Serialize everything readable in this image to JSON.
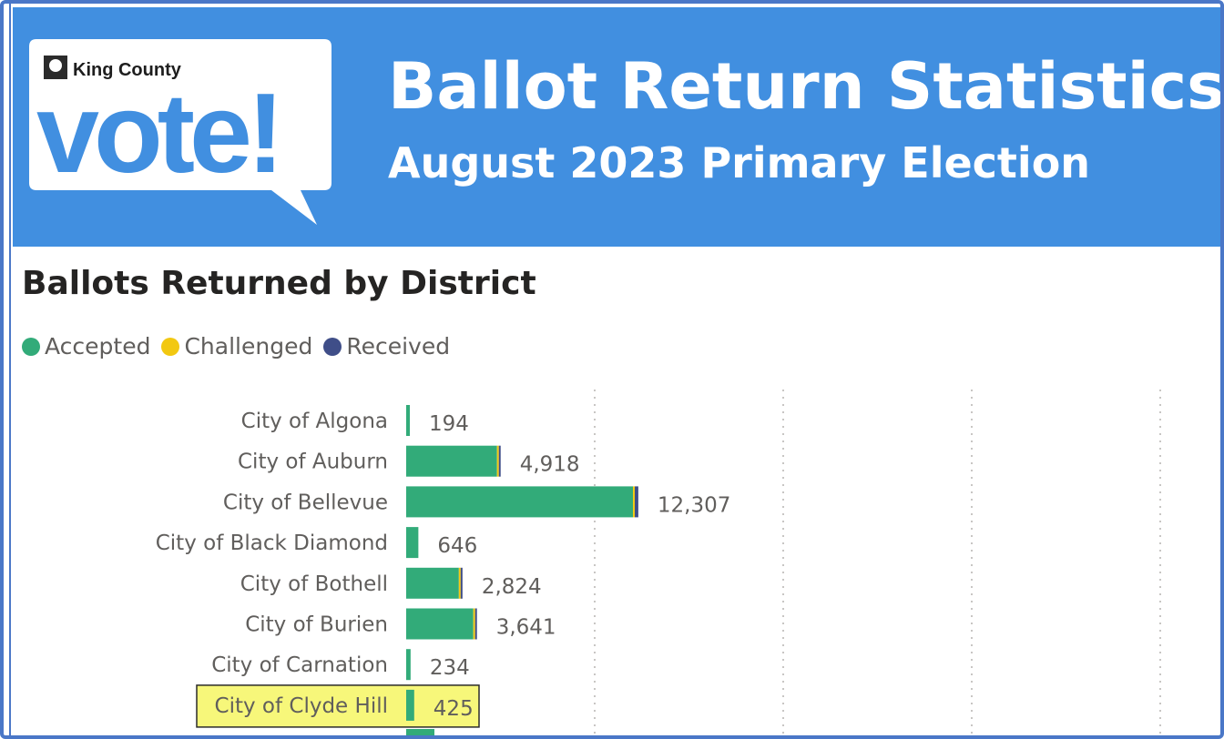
{
  "header": {
    "logo_text_top": "King County",
    "logo_text_main": "vote!",
    "title": "Ballot Return Statistics",
    "subtitle": "August 2023 Primary Election",
    "background_color": "#418fe0"
  },
  "chart_data": {
    "type": "bar",
    "orientation": "horizontal",
    "stacked": true,
    "title": "Ballots Returned by District",
    "legend": [
      {
        "name": "Accepted",
        "color": "#32ab79"
      },
      {
        "name": "Challenged",
        "color": "#f2c811"
      },
      {
        "name": "Received",
        "color": "#3f4e88"
      }
    ],
    "legend_position": "top-left",
    "categories": [
      "City of Algona",
      "City of Auburn",
      "City of Bellevue",
      "City of Black Diamond",
      "City of Bothell",
      "City of Burien",
      "City of Carnation",
      "City of Clyde Hill"
    ],
    "totals": [
      "194",
      "4,918",
      "12,307",
      "646",
      "2,824",
      "3,641",
      "234",
      "425"
    ],
    "series": [
      {
        "name": "Accepted",
        "values": [
          194,
          4818,
          12030,
          646,
          2794,
          3561,
          234,
          425
        ]
      },
      {
        "name": "Challenged",
        "values": [
          0,
          20,
          90,
          0,
          10,
          30,
          0,
          0
        ]
      },
      {
        "name": "Received",
        "values": [
          0,
          80,
          187,
          0,
          20,
          50,
          0,
          0
        ]
      }
    ],
    "xlim": [
      0,
      40000
    ],
    "gridlines": "vertical-dotted",
    "highlighted_category": "City of Clyde Hill",
    "highlight_color": "#f7f77a"
  }
}
